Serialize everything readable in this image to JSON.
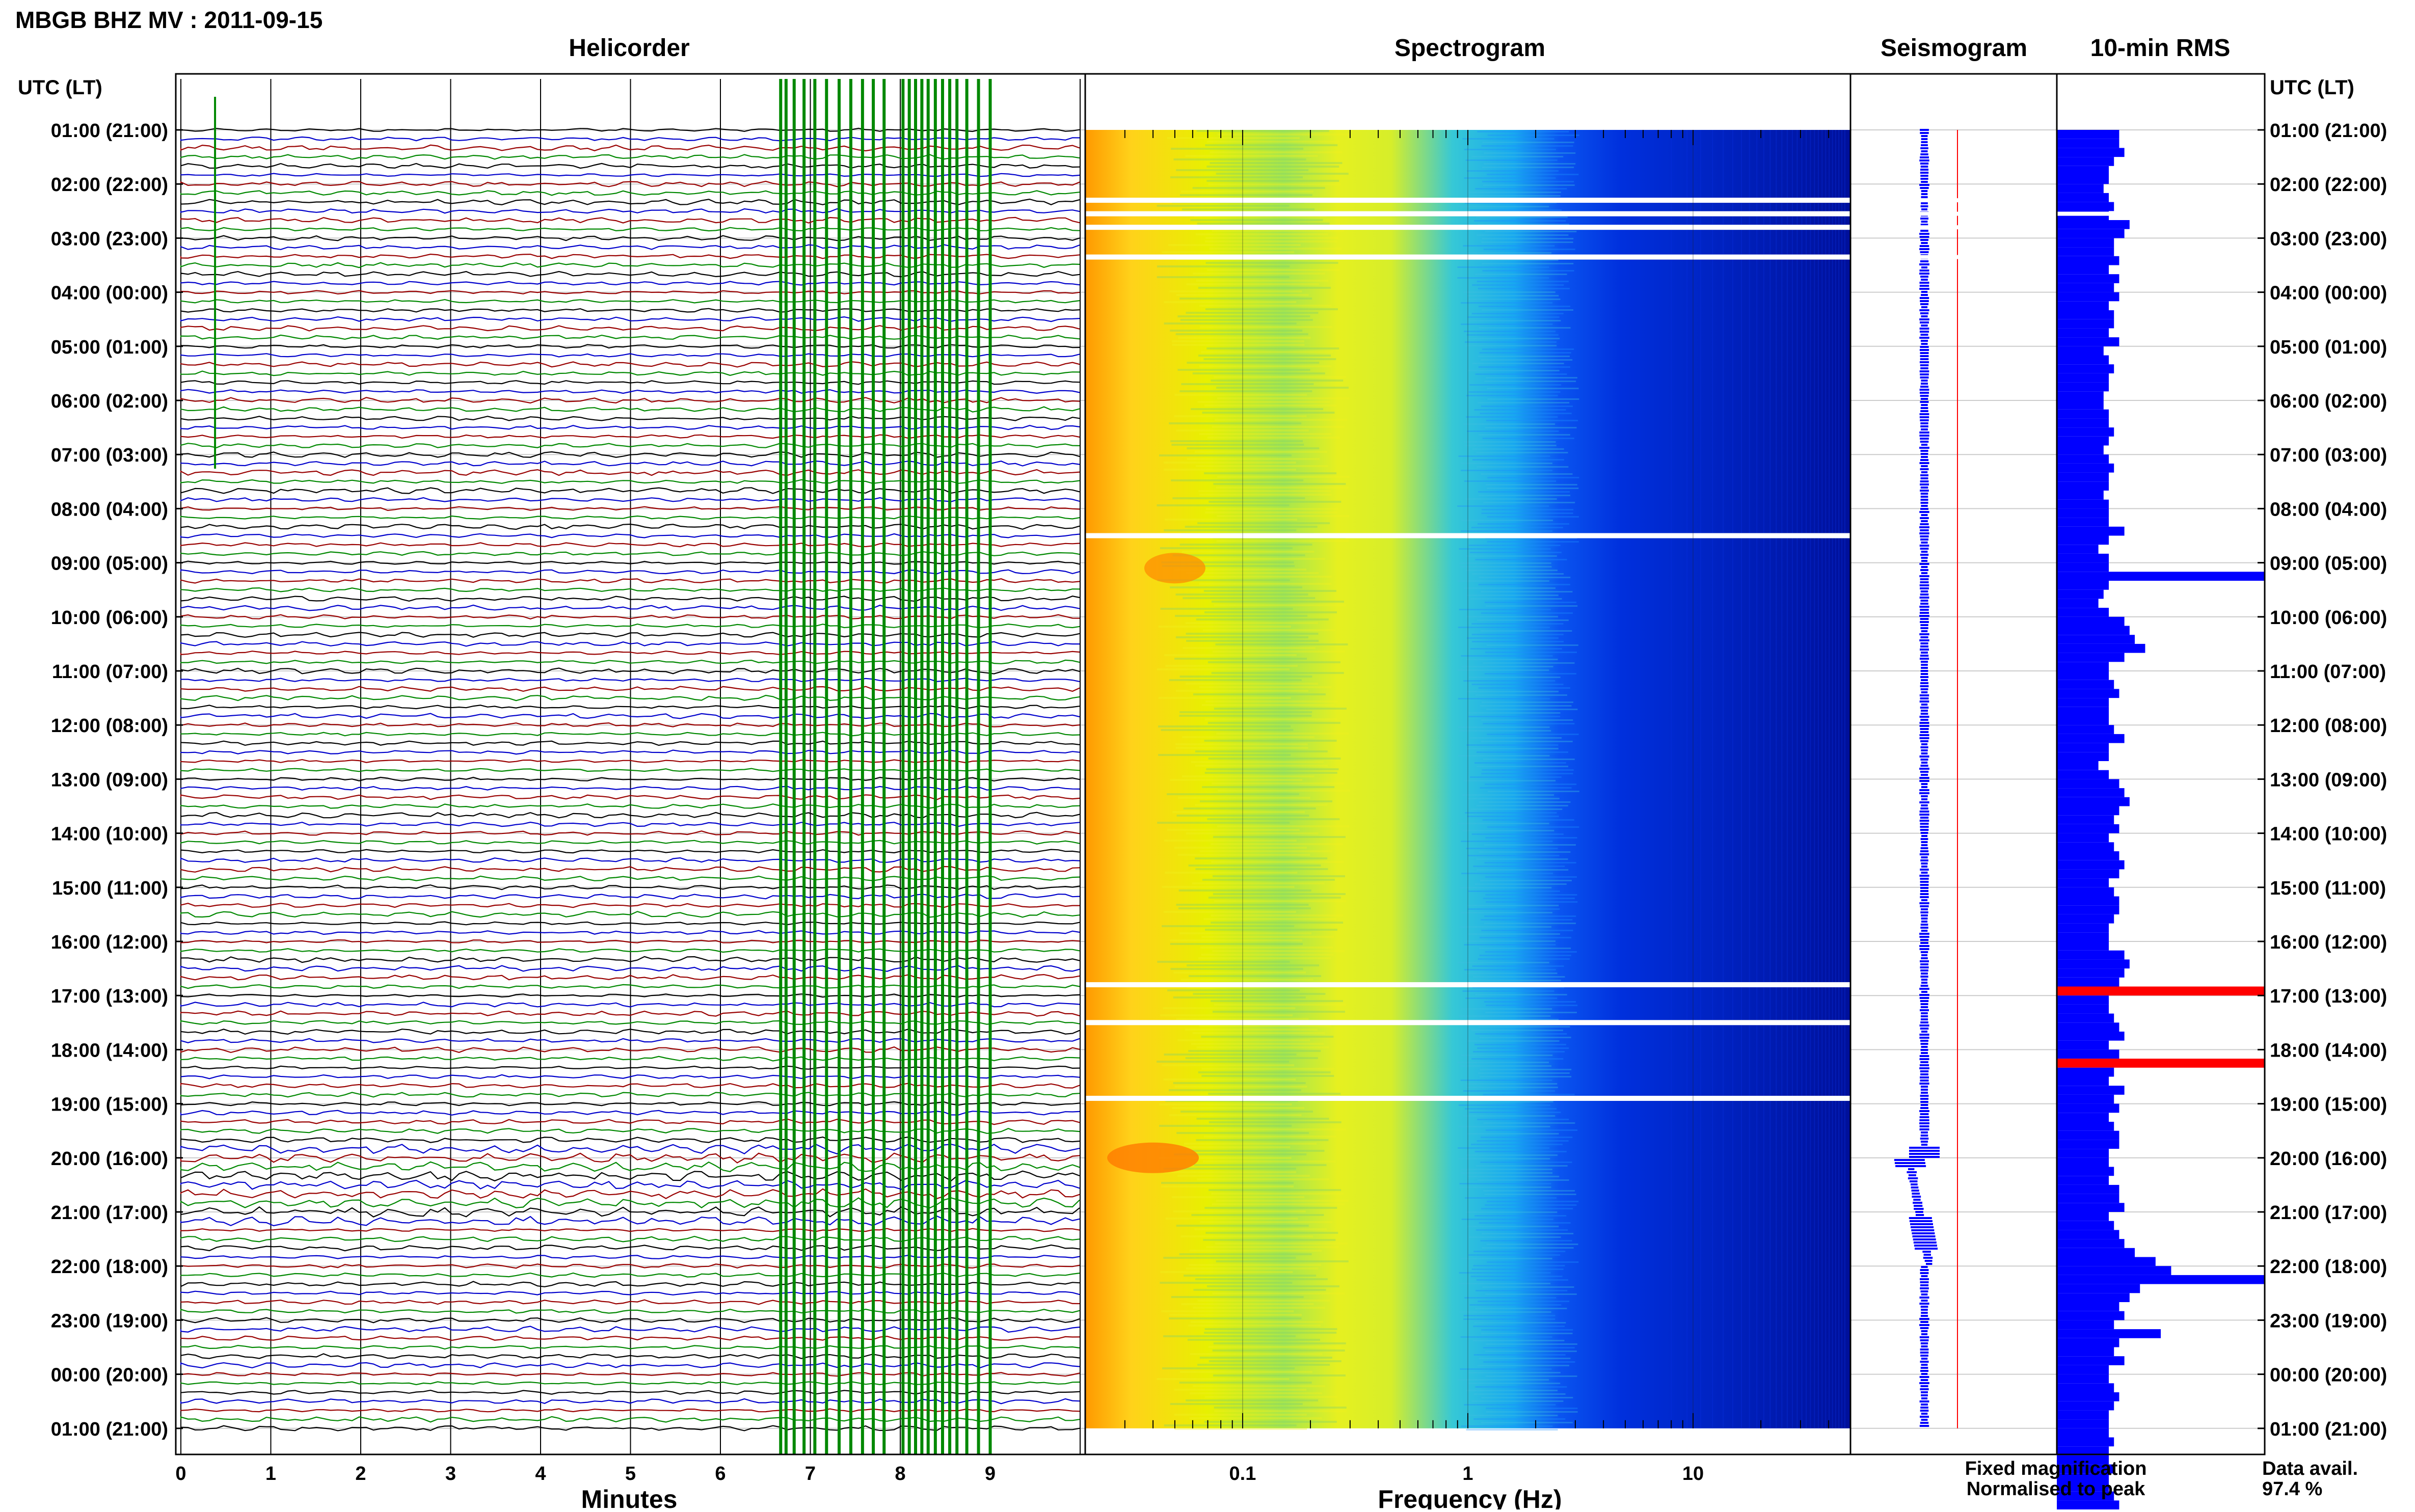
{
  "page": {
    "title": "MBGB BHZ MV : 2011-09-15",
    "utc_header_left": "UTC (LT)",
    "utc_header_right": "UTC (LT)"
  },
  "chart_data": {
    "type": "line",
    "title": "MBGB BHZ MV : 2011-09-15",
    "panels": [
      {
        "name": "helicorder",
        "title": "Helicorder",
        "type": "line",
        "xlabel": "Minutes",
        "xlim": [
          0,
          10
        ],
        "x_ticks": [
          "0",
          "1",
          "2",
          "3",
          "4",
          "5",
          "6",
          "7",
          "8",
          "9"
        ],
        "rows_per_hour": 6,
        "trace_colors": [
          "#000000",
          "#0000cc",
          "#990000",
          "#008800"
        ],
        "gap_bars_minutes": [
          6.67,
          6.73,
          6.82,
          6.93,
          7.05,
          7.18,
          7.32,
          7.45,
          7.58,
          7.7,
          7.82,
          8.03,
          8.1,
          8.17,
          8.24,
          8.31,
          8.39,
          8.47,
          8.55,
          8.63,
          8.74,
          8.87,
          9.0
        ],
        "gap_bar_color": "#008800"
      },
      {
        "name": "spectrogram",
        "title": "Spectrogram",
        "type": "heatmap",
        "xlabel": "Frequency (Hz)",
        "xscale": "log",
        "xlim": [
          0.02,
          50
        ],
        "x_ticks": [
          "0.1",
          "1",
          "10"
        ],
        "colormap": "jet",
        "gap_hours_utc": [
          1.3,
          1.55,
          1.8,
          2.35,
          7.5,
          15.8,
          16.5,
          17.9
        ]
      },
      {
        "name": "seismogram",
        "title": "Seismogram",
        "type": "line",
        "trace_color": "#0000ff",
        "peak_line_color": "#ff0000"
      },
      {
        "name": "rms",
        "title": "10-min RMS",
        "type": "bar",
        "orientation": "horizontal",
        "bar_color": "#0000ff",
        "peak_color": "#ff0000",
        "values": [
          1.2,
          1.2,
          1.3,
          1.1,
          1.0,
          1.0,
          0.9,
          1.0,
          1.1,
          1.0,
          1.4,
          1.3,
          1.1,
          1.1,
          1.2,
          1.0,
          1.2,
          1.1,
          1.2,
          1.0,
          1.1,
          1.1,
          1.0,
          1.2,
          0.9,
          1.0,
          1.1,
          1.0,
          1.0,
          0.9,
          0.9,
          1.0,
          1.0,
          1.1,
          1.0,
          0.9,
          1.0,
          1.1,
          1.0,
          1.0,
          0.9,
          1.0,
          1.0,
          1.0,
          1.3,
          1.0,
          0.8,
          1.0,
          1.0,
          4.0,
          1.0,
          0.9,
          0.8,
          1.0,
          1.3,
          1.4,
          1.5,
          1.7,
          1.3,
          1.0,
          1.0,
          1.1,
          1.2,
          1.0,
          1.0,
          1.0,
          1.1,
          1.3,
          1.0,
          1.0,
          0.8,
          1.0,
          1.2,
          1.3,
          1.4,
          1.2,
          1.1,
          1.2,
          1.0,
          1.1,
          1.2,
          1.3,
          1.2,
          1.0,
          1.1,
          1.2,
          1.2,
          1.1,
          1.0,
          1.0,
          1.0,
          1.3,
          1.4,
          1.3,
          1.2,
          4.0,
          1.0,
          1.0,
          1.1,
          1.2,
          1.3,
          1.0,
          1.2,
          4.0,
          1.1,
          1.0,
          1.3,
          1.1,
          1.2,
          1.0,
          1.1,
          1.2,
          1.2,
          1.0,
          1.0,
          1.1,
          1.0,
          1.2,
          1.2,
          1.3,
          1.0,
          1.1,
          1.2,
          1.3,
          1.5,
          1.9,
          2.2,
          4.0,
          1.6,
          1.4,
          1.2,
          1.3,
          1.1,
          2.0,
          1.2,
          1.1,
          1.3,
          1.0,
          1.0,
          1.1,
          1.2,
          1.1,
          1.0,
          1.0,
          1.0,
          1.1,
          1.0,
          1.0,
          1.1,
          1.0,
          1.0,
          1.1,
          1.2,
          1.1,
          1.0,
          1.0,
          0.9
        ],
        "peak_indices": [
          95,
          103
        ],
        "xlim": [
          0,
          4
        ]
      }
    ],
    "y_ticks_utc": [
      "01:00",
      "02:00",
      "03:00",
      "04:00",
      "05:00",
      "06:00",
      "07:00",
      "08:00",
      "09:00",
      "10:00",
      "11:00",
      "12:00",
      "13:00",
      "14:00",
      "15:00",
      "16:00",
      "17:00",
      "18:00",
      "19:00",
      "20:00",
      "21:00",
      "22:00",
      "23:00",
      "00:00",
      "01:00"
    ],
    "y_ticks": [
      "01:00 (21:00)",
      "02:00 (22:00)",
      "03:00 (23:00)",
      "04:00 (00:00)",
      "05:00 (01:00)",
      "06:00 (02:00)",
      "07:00 (03:00)",
      "08:00 (04:00)",
      "09:00 (05:00)",
      "10:00 (06:00)",
      "11:00 (07:00)",
      "12:00 (08:00)",
      "13:00 (09:00)",
      "14:00 (10:00)",
      "15:00 (11:00)",
      "16:00 (12:00)",
      "17:00 (13:00)",
      "18:00 (14:00)",
      "19:00 (15:00)",
      "20:00 (16:00)",
      "21:00 (17:00)",
      "22:00 (18:00)",
      "23:00 (19:00)",
      "00:00 (20:00)",
      "01:00 (21:00)"
    ],
    "grid": true
  },
  "legend": {
    "fixed_label": "Fixed magnification",
    "fixed_color": "#0000ff",
    "peak_label": "Normalised to peak",
    "peak_color": "#ff0000",
    "availability_label": "Data avail.",
    "availability_value": "97.4 %"
  }
}
